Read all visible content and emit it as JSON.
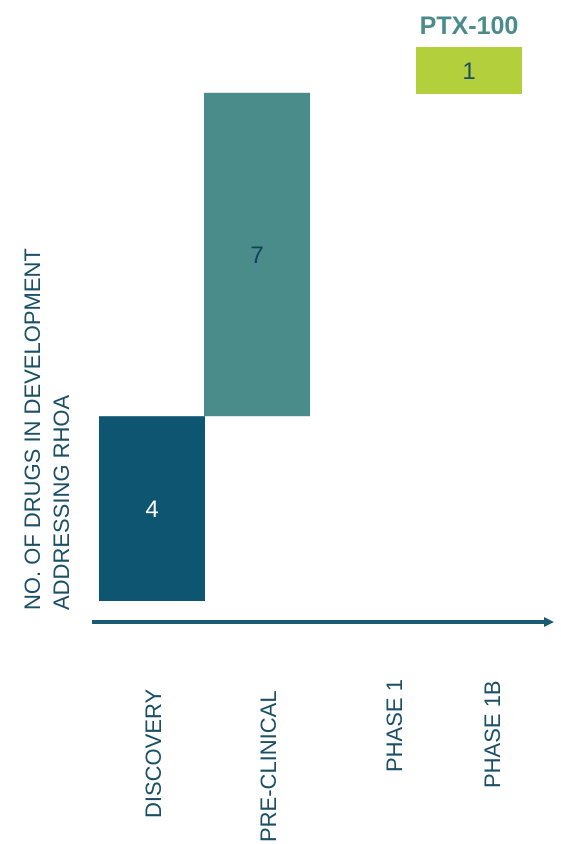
{
  "chart_data": {
    "type": "bar",
    "ylabel_lines": [
      "NO. OF DRUGS IN DEVELOPMENT",
      "ADDRESSING RHOA"
    ],
    "categories": [
      "DISCOVERY",
      "PRE-CLINICAL",
      "PHASE 1",
      "PHASE 1B"
    ],
    "values": [
      4,
      7,
      null,
      1
    ],
    "bar_colors": [
      "#0d5570",
      "#4a8c8a",
      null,
      "#b3cf3b"
    ],
    "label_colors": [
      "#ffffff",
      "#153f55",
      null,
      "#1b4f66"
    ],
    "callout": {
      "title": "PTX-100",
      "value": 1,
      "category": "PHASE 1B",
      "title_color": "#4a8c8a"
    },
    "axis_color": "#1b5a73",
    "grid": false,
    "legend": "none"
  }
}
